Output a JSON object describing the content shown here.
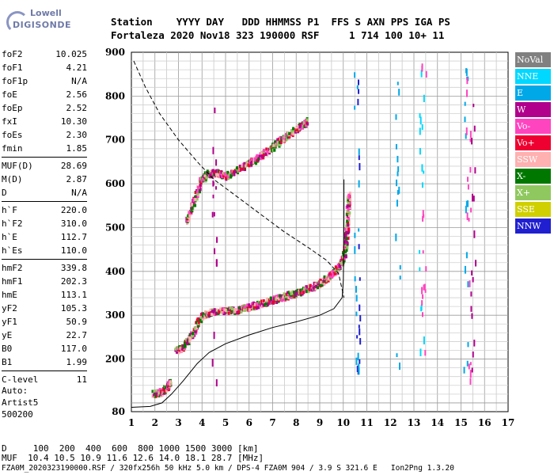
{
  "logo": {
    "line1": "Lowell",
    "line2": "DIGISONDE"
  },
  "header": {
    "line1": "Station    YYYY DAY   DDD HHMMSS P1  FFS S AXN PPS IGA PS",
    "line2": "Fortaleza 2020 Nov18 323 190000 RSF     1 714 100 10+ 11"
  },
  "params": {
    "group1": [
      [
        "foF2",
        "10.025"
      ],
      [
        "foF1",
        "4.21"
      ],
      [
        "foF1p",
        "N/A"
      ],
      [
        "foE",
        "2.56"
      ],
      [
        "foEp",
        "2.52"
      ],
      [
        "fxI",
        "10.30"
      ],
      [
        "foEs",
        "2.30"
      ],
      [
        "fmin",
        "1.85"
      ]
    ],
    "group2": [
      [
        "MUF(D)",
        "28.69"
      ],
      [
        "M(D)",
        "2.87"
      ],
      [
        "D",
        "N/A"
      ]
    ],
    "group3": [
      [
        "h`F",
        "220.0"
      ],
      [
        "h`F2",
        "310.0"
      ],
      [
        "h`E",
        "112.7"
      ],
      [
        "h`Es",
        "110.0"
      ]
    ],
    "group4": [
      [
        "hmF2",
        "339.8"
      ],
      [
        "hmF1",
        "202.3"
      ],
      [
        "hmE",
        "113.1"
      ],
      [
        "yF2",
        "105.3"
      ],
      [
        "yF1",
        "50.9"
      ],
      [
        "yE",
        "22.7"
      ],
      [
        "B0",
        "117.0"
      ],
      [
        "B1",
        "1.99"
      ]
    ],
    "group5": [
      [
        "C-level",
        "11"
      ]
    ]
  },
  "auto": {
    "line1": "Auto:",
    "line2": "Artist5",
    "line3": "500200"
  },
  "legend": [
    {
      "label": "NoVal",
      "color": "#808080"
    },
    {
      "label": "NNE",
      "color": "#00d8ff"
    },
    {
      "label": "E",
      "color": "#00a8e8"
    },
    {
      "label": "W",
      "color": "#b0008c"
    },
    {
      "label": "Vo-",
      "color": "#ff44c0"
    },
    {
      "label": "Vo+",
      "color": "#ee0030"
    },
    {
      "label": "SSW",
      "color": "#ffb0b0"
    },
    {
      "label": "X-",
      "color": "#007800"
    },
    {
      "label": "X+",
      "color": "#90c860"
    },
    {
      "label": "SSE",
      "color": "#d0d000"
    },
    {
      "label": "NNW",
      "color": "#2020d0"
    }
  ],
  "footer": {
    "line1": "D     100  200  400  600  800 1000 1500 3000 [km]",
    "line2": "MUF  10.4 10.5 10.9 11.6 12.6 14.0 18.1 28.7 [MHz]",
    "line3": "FZA0M_2020323190000.RSF / 320fx256h 50 kHz 5.0 km / DPS-4 FZA0M 904 / 3.9 S 321.6 E   Ion2Png 1.3.20"
  },
  "chart_data": {
    "type": "scatter",
    "x_label": "",
    "y_label": "",
    "xlim": [
      1,
      17
    ],
    "ylim": [
      80,
      900
    ],
    "x_ticks": [
      1,
      2,
      3,
      4,
      5,
      6,
      7,
      8,
      9,
      10,
      11,
      12,
      13,
      14,
      15,
      16,
      17
    ],
    "y_ticks": [
      80,
      200,
      300,
      400,
      500,
      600,
      700,
      800,
      900
    ],
    "grid": true,
    "profile_curve": [
      [
        1.0,
        90
      ],
      [
        1.8,
        92
      ],
      [
        2.3,
        100
      ],
      [
        2.7,
        120
      ],
      [
        3.2,
        150
      ],
      [
        3.8,
        190
      ],
      [
        4.3,
        215
      ],
      [
        5.0,
        235
      ],
      [
        6.0,
        255
      ],
      [
        7.0,
        272
      ],
      [
        8.0,
        285
      ],
      [
        9.0,
        300
      ],
      [
        9.6,
        315
      ],
      [
        9.95,
        340
      ],
      [
        10.0,
        380
      ],
      [
        10.02,
        450
      ],
      [
        10.03,
        530
      ],
      [
        10.03,
        610
      ]
    ],
    "extrapolated_curve": [
      [
        1.1,
        880
      ],
      [
        1.6,
        820
      ],
      [
        2.2,
        760
      ],
      [
        3.0,
        700
      ],
      [
        3.8,
        650
      ],
      [
        4.5,
        610
      ],
      [
        5.5,
        570
      ],
      [
        6.5,
        530
      ],
      [
        7.5,
        490
      ],
      [
        8.5,
        455
      ],
      [
        9.3,
        425
      ],
      [
        9.8,
        395
      ],
      [
        10.03,
        340
      ]
    ],
    "traces": [
      {
        "name": "F-layer low trace",
        "points": [
          [
            2.85,
            222
          ],
          [
            3.2,
            232
          ],
          [
            3.6,
            262
          ],
          [
            3.9,
            298
          ],
          [
            4.3,
            310
          ],
          [
            5.0,
            312
          ],
          [
            5.5,
            316
          ],
          [
            6.0,
            322
          ],
          [
            6.5,
            330
          ],
          [
            7.0,
            338
          ],
          [
            7.5,
            346
          ],
          [
            8.0,
            354
          ],
          [
            8.5,
            364
          ],
          [
            9.0,
            376
          ],
          [
            9.3,
            388
          ],
          [
            9.6,
            402
          ],
          [
            9.85,
            420
          ],
          [
            10.0,
            440
          ],
          [
            10.1,
            480
          ],
          [
            10.15,
            530
          ],
          [
            10.2,
            580
          ]
        ]
      },
      {
        "name": "F-layer high trace",
        "points": [
          [
            3.3,
            520
          ],
          [
            3.6,
            560
          ],
          [
            3.9,
            610
          ],
          [
            4.2,
            625
          ],
          [
            4.6,
            628
          ],
          [
            5.0,
            620
          ],
          [
            5.5,
            635
          ],
          [
            6.0,
            650
          ],
          [
            6.5,
            668
          ],
          [
            7.0,
            688
          ],
          [
            7.5,
            710
          ],
          [
            8.0,
            728
          ],
          [
            8.5,
            748
          ]
        ]
      },
      {
        "name": "E/Es trace",
        "points": [
          [
            1.9,
            123
          ],
          [
            2.1,
            125
          ],
          [
            2.3,
            130
          ],
          [
            2.5,
            140
          ],
          [
            2.6,
            150
          ]
        ]
      }
    ]
  }
}
